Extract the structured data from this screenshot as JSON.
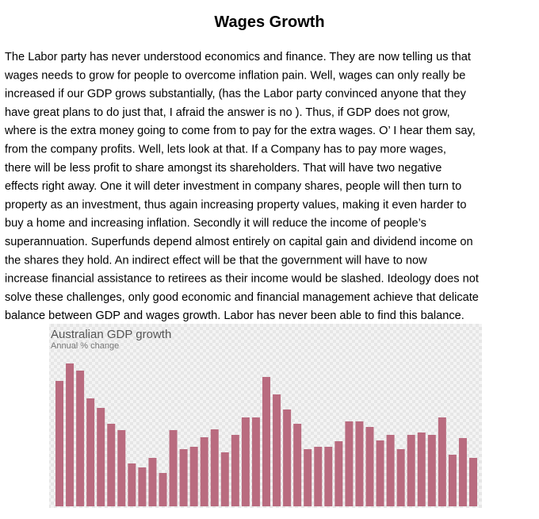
{
  "document": {
    "title": "Wages Growth",
    "lines": [
      "The Labor party has never understood economics and finance. They are now telling us that",
      "wages needs to grow for people to overcome inflation pain. Well, wages can only really be",
      "increased if our GDP grows substantially, (has the Labor party convinced anyone that they",
      "have great plans to do just that, I afraid the answer is no ). Thus, if GDP does not grow,",
      "where is the extra money going to come from to pay for the extra wages. O’ I hear them say,",
      "from the company profits. Well, lets look at that. If a Company has to pay more wages,",
      "there will be less profit to share amongst its shareholders. That will have two negative",
      "effects right away.  One it will deter investment in company shares, people will then turn to",
      "property as an investment, thus again increasing property values, making it even harder to",
      "buy a home and increasing inflation. Secondly it will reduce the income of people’s",
      "superannuation. Superfunds depend almost entirely on capital gain and dividend income on",
      "the shares they hold. An indirect effect will be that the government will have to now",
      "increase financial assistance to retirees as their income would be slashed. Ideology does not",
      "solve these challenges, only good economic and financial management achieve that delicate",
      "balance between GDP and wages growth. Labor has never been able to find this balance."
    ]
  },
  "chart_data": {
    "type": "bar",
    "title": "Australian GDP growth",
    "subtitle": "Annual % change",
    "color": "#b96b7f",
    "values": [
      158,
      180,
      171,
      136,
      124,
      104,
      96,
      54,
      49,
      61,
      42,
      96,
      72,
      75,
      87,
      97,
      68,
      90,
      112,
      112,
      163,
      141,
      122,
      104,
      72,
      75,
      75,
      82,
      107,
      107,
      100,
      83,
      90,
      72,
      90,
      93,
      90,
      112,
      65,
      86,
      61
    ],
    "ylim": [
      0,
      190
    ]
  }
}
